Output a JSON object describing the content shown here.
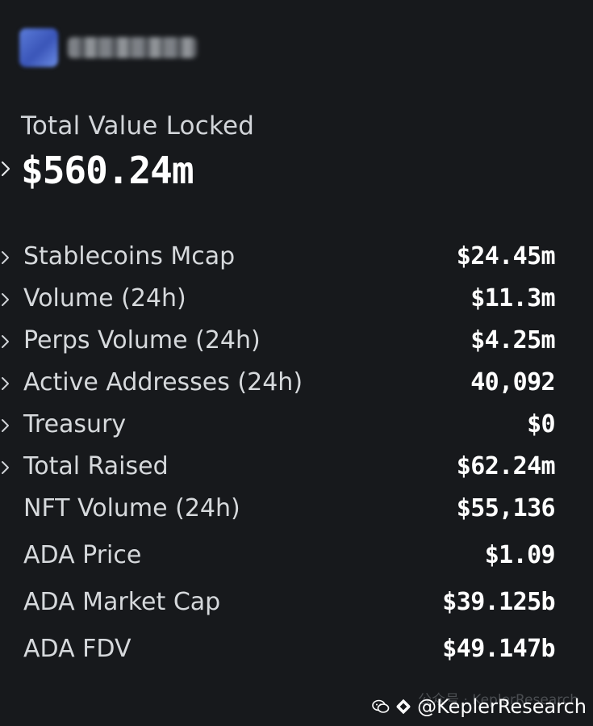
{
  "header": {
    "logo_icon": "protocol-logo-icon"
  },
  "tvl": {
    "label": "Total Value Locked",
    "value": "$560.24m"
  },
  "metrics": [
    {
      "label": "Stablecoins Mcap",
      "value": "$24.45m",
      "expandable": true
    },
    {
      "label": "Volume (24h)",
      "value": "$11.3m",
      "expandable": true
    },
    {
      "label": "Perps Volume (24h)",
      "value": "$4.25m",
      "expandable": true
    },
    {
      "label": "Active Addresses (24h)",
      "value": "40,092",
      "expandable": true
    },
    {
      "label": "Treasury",
      "value": "$0",
      "expandable": true
    },
    {
      "label": "Total Raised",
      "value": "$62.24m",
      "expandable": true
    },
    {
      "label": "NFT Volume (24h)",
      "value": "$55,136",
      "expandable": false
    },
    {
      "label": "ADA Price",
      "value": "$1.09",
      "expandable": false
    },
    {
      "label": "ADA Market Cap",
      "value": "$39.125b",
      "expandable": false
    },
    {
      "label": "ADA FDV",
      "value": "$49.147b",
      "expandable": false
    }
  ],
  "watermark": {
    "faded_text": "公众号 · KeplerResearch",
    "text": "@KeplerResearch"
  },
  "colors": {
    "background": "#17191c",
    "text_primary": "#ffffff",
    "text_secondary": "#d6d9dc"
  }
}
